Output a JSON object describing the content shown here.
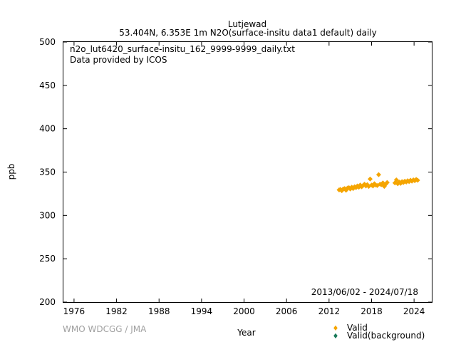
{
  "header": {
    "station": "Lutjewad",
    "subtitle": "53.404N, 6.353E 1m    N2O(surface-insitu data1 default) daily"
  },
  "info": {
    "filename": "n2o_lut6420_surface-insitu_162_9999-9999_daily.txt",
    "provider": "Data provided by ICOS",
    "date_range": "2013/06/02 - 2024/07/18"
  },
  "credit": "WMO WDCGG / JMA",
  "colors": {
    "valid": "#f5a500",
    "background": "#1a7a5a"
  },
  "chart_data": {
    "type": "scatter",
    "xlabel": "Year",
    "ylabel": "ppb",
    "xlim": [
      1974.5,
      2026.5
    ],
    "ylim": [
      200,
      500
    ],
    "xticks": [
      1976,
      1982,
      1988,
      1994,
      2000,
      2006,
      2012,
      2018,
      2024
    ],
    "yticks": [
      200,
      250,
      300,
      350,
      400,
      450,
      500
    ],
    "legend_position": "bottom-right, below plot",
    "legend": [
      "Valid",
      "Valid(background)"
    ],
    "series": [
      {
        "name": "Valid",
        "x": [
          2013.42,
          2013.6,
          2013.8,
          2014.0,
          2014.2,
          2014.4,
          2014.6,
          2014.8,
          2015.0,
          2015.2,
          2015.4,
          2015.6,
          2015.8,
          2016.0,
          2016.2,
          2016.4,
          2016.6,
          2016.8,
          2017.0,
          2017.2,
          2017.4,
          2017.6,
          2017.8,
          2018.0,
          2018.2,
          2018.4,
          2018.6,
          2018.8,
          2019.0,
          2019.2,
          2019.4,
          2019.6,
          2019.8,
          2020.0,
          2020.2,
          2021.3,
          2021.5,
          2021.7,
          2021.9,
          2022.1,
          2022.3,
          2022.5,
          2022.7,
          2022.9,
          2023.1,
          2023.3,
          2023.5,
          2023.7,
          2023.9,
          2024.1,
          2024.3,
          2024.5
        ],
        "y": [
          329.5,
          330.0,
          328.5,
          330.5,
          331.0,
          329.0,
          331.5,
          332.0,
          330.5,
          332.5,
          331.0,
          333.0,
          332.0,
          334.0,
          332.5,
          335.0,
          333.0,
          334.5,
          336.0,
          334.0,
          335.5,
          333.5,
          342.0,
          335.0,
          334.0,
          336.5,
          335.0,
          334.5,
          347.0,
          336.0,
          335.5,
          337.5,
          333.5,
          336.0,
          338.0,
          337.5,
          341.0,
          336.5,
          338.5,
          337.0,
          339.0,
          338.0,
          339.5,
          338.5,
          340.0,
          339.0,
          340.5,
          339.5,
          341.0,
          340.0,
          341.5,
          340.5
        ]
      },
      {
        "name": "Valid(background)",
        "x": [],
        "y": []
      }
    ]
  }
}
